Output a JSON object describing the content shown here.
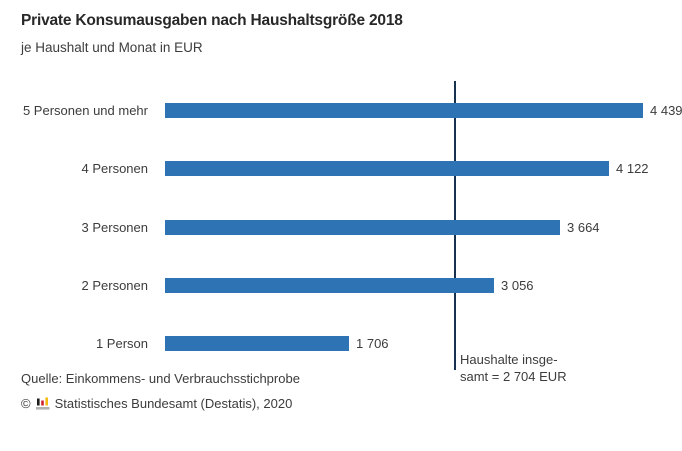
{
  "chart_data": {
    "type": "bar",
    "orientation": "horizontal",
    "title": "Private Konsumausgaben nach Haushaltsgröße 2018",
    "subtitle": "je Haushalt und Monat in EUR",
    "categories": [
      "5 Personen und mehr",
      "4 Personen",
      "3 Personen",
      "2 Personen",
      "1 Person"
    ],
    "values": [
      4439,
      4122,
      3664,
      3056,
      1706
    ],
    "value_labels": [
      "4 439",
      "4 122",
      "3 664",
      "3 056",
      "1 706"
    ],
    "xlim": [
      0,
      4620
    ],
    "grid": false,
    "legend": false,
    "bar_color": "#2e74b5",
    "reference_line": {
      "value": 2704,
      "label_lines": [
        "Haushalte insge-",
        "samt = 2 704 EUR"
      ],
      "color": "#16324f"
    }
  },
  "footer": {
    "source": "Quelle: Einkommens- und Verbrauchsstichprobe",
    "copyright_symbol": "©",
    "copyright_text": "Statistisches Bundesamt (Destatis), 2020",
    "logo_icon": "destatis-bars-icon",
    "logo_colors": {
      "black": "#1d1d1b",
      "red": "#cf2334",
      "gold": "#f6b912",
      "base": "#b2b2b2"
    }
  }
}
